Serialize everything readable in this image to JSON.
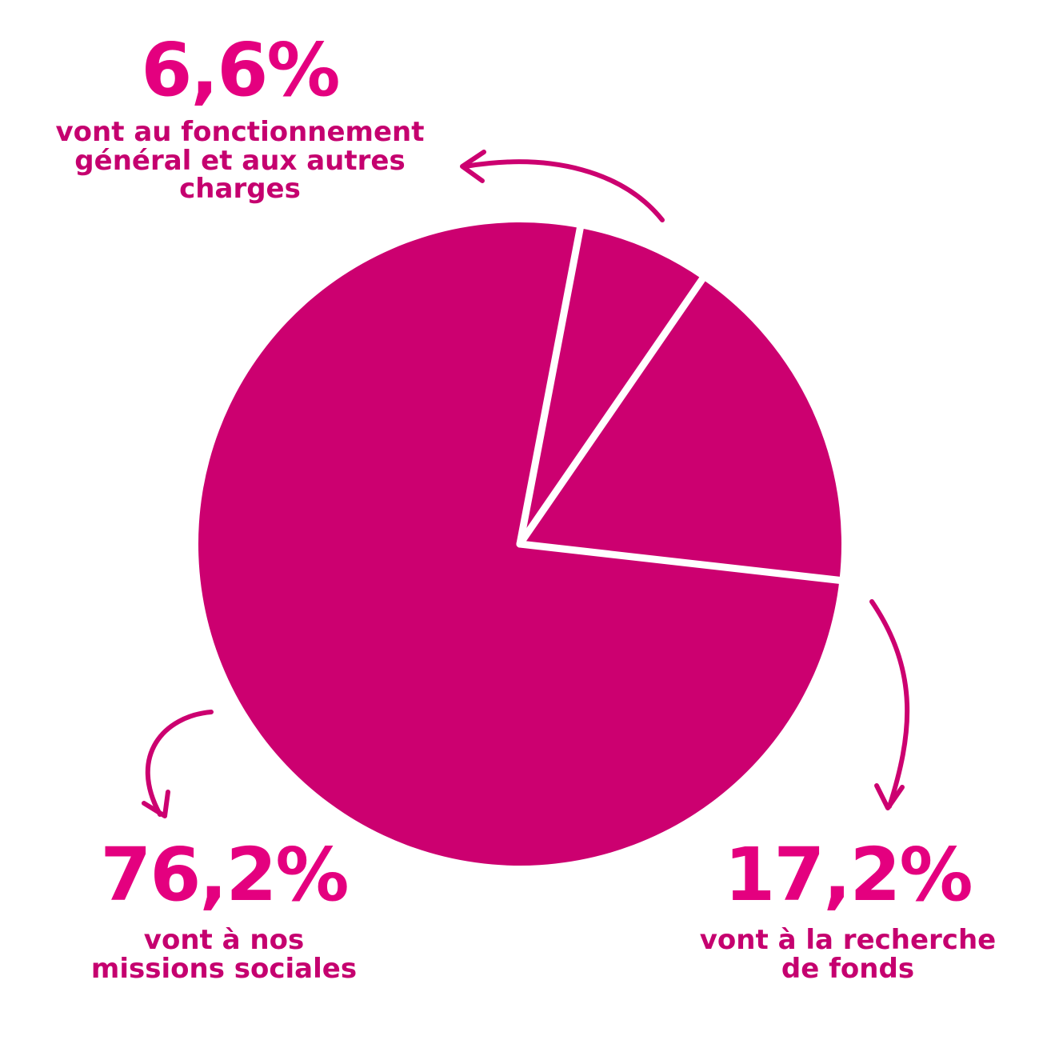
{
  "chart_data": {
    "type": "pie",
    "slices": [
      {
        "value": 76.2,
        "label": "76,2%",
        "description_lines": [
          "vont à nos",
          "missions sociales"
        ]
      },
      {
        "value": 6.6,
        "label": "6,6%",
        "description_lines": [
          "vont au fonctionnement",
          "général et aux autres",
          "charges"
        ]
      },
      {
        "value": 17.2,
        "label": "17,2%",
        "description_lines": [
          "vont à la recherche",
          "de fonds"
        ]
      }
    ],
    "colors": {
      "slice": "#cc0070",
      "separator": "#ffffff",
      "percent_text": "#e4007f",
      "description_text": "#c5006f",
      "arrow": "#cc0070"
    }
  }
}
